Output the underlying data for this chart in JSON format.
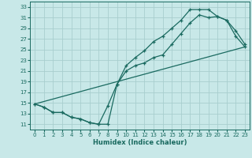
{
  "xlabel": "Humidex (Indice chaleur)",
  "bg_color": "#c8e8e8",
  "grid_color": "#a8cece",
  "line_color": "#1a6a60",
  "spine_color": "#1a6a60",
  "xlim": [
    -0.5,
    23.5
  ],
  "ylim": [
    10,
    34
  ],
  "xticks": [
    0,
    1,
    2,
    3,
    4,
    5,
    6,
    7,
    8,
    9,
    10,
    11,
    12,
    13,
    14,
    15,
    16,
    17,
    18,
    19,
    20,
    21,
    22,
    23
  ],
  "yticks": [
    11,
    13,
    15,
    17,
    19,
    21,
    23,
    25,
    27,
    29,
    31,
    33
  ],
  "line1_x": [
    0,
    1,
    2,
    3,
    4,
    5,
    6,
    7,
    8,
    9,
    10,
    11,
    12,
    13,
    14,
    15,
    16,
    17,
    18,
    19,
    20,
    21,
    22,
    23
  ],
  "line1_y": [
    14.8,
    14.2,
    13.2,
    13.2,
    12.3,
    12.0,
    11.3,
    11.0,
    11.0,
    18.5,
    22.0,
    23.5,
    24.8,
    26.5,
    27.5,
    29.0,
    30.5,
    32.5,
    32.5,
    32.5,
    31.2,
    30.5,
    28.5,
    26.0
  ],
  "line2_x": [
    0,
    1,
    2,
    3,
    4,
    5,
    6,
    7,
    8,
    9,
    10,
    11,
    12,
    13,
    14,
    15,
    16,
    17,
    18,
    19,
    20,
    21,
    22,
    23
  ],
  "line2_y": [
    14.8,
    14.2,
    13.2,
    13.2,
    12.3,
    12.0,
    11.3,
    11.0,
    14.5,
    18.5,
    21.0,
    22.0,
    22.5,
    23.5,
    24.0,
    26.0,
    28.0,
    30.0,
    31.5,
    31.0,
    31.2,
    30.5,
    27.5,
    25.5
  ],
  "line3_x": [
    0,
    23
  ],
  "line3_y": [
    14.8,
    25.5
  ]
}
